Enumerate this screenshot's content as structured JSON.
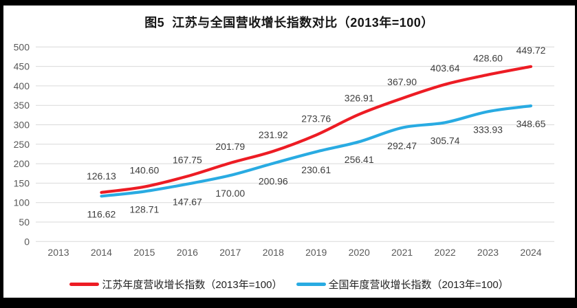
{
  "title": "图5  江苏与全国营收增长指数对比（2013年=100）",
  "chart_data": {
    "type": "line",
    "title": "图5  江苏与全国营收增长指数对比（2013年=100）",
    "categories": [
      "2013",
      "2014",
      "2015",
      "2016",
      "2017",
      "2018",
      "2019",
      "2020",
      "2021",
      "2022",
      "2023",
      "2024"
    ],
    "series": [
      {
        "name": "江苏年度营收增长指数（2013年=100）",
        "color": "#ed1c24",
        "values": [
          null,
          126.13,
          140.6,
          167.75,
          201.79,
          231.92,
          273.76,
          326.91,
          367.9,
          403.64,
          428.6,
          449.72
        ],
        "label_position": "above"
      },
      {
        "name": "全国年度营收增长指数（2013年=100）",
        "color": "#29abe2",
        "values": [
          null,
          116.62,
          128.71,
          147.67,
          170.0,
          200.96,
          230.61,
          256.41,
          292.47,
          305.74,
          333.93,
          348.65
        ],
        "label_position": "below"
      }
    ],
    "xlabel": "",
    "ylabel": "",
    "ylim": [
      0,
      500
    ],
    "ytick_step": 50,
    "grid": true,
    "smooth_lines": true,
    "legend_position": "bottom",
    "label_decimals": 2,
    "colors": {
      "gridline": "#d9d9d9",
      "axis_text": "#595959",
      "data_label": "#3d3d3d",
      "background": "#ffffff",
      "frame_border": "#000000"
    }
  },
  "legend": {
    "items": [
      {
        "label": "江苏年度营收增长指数（2013年=100）",
        "color": "#ed1c24"
      },
      {
        "label": "全国年度营收增长指数（2013年=100）",
        "color": "#29abe2"
      }
    ]
  }
}
